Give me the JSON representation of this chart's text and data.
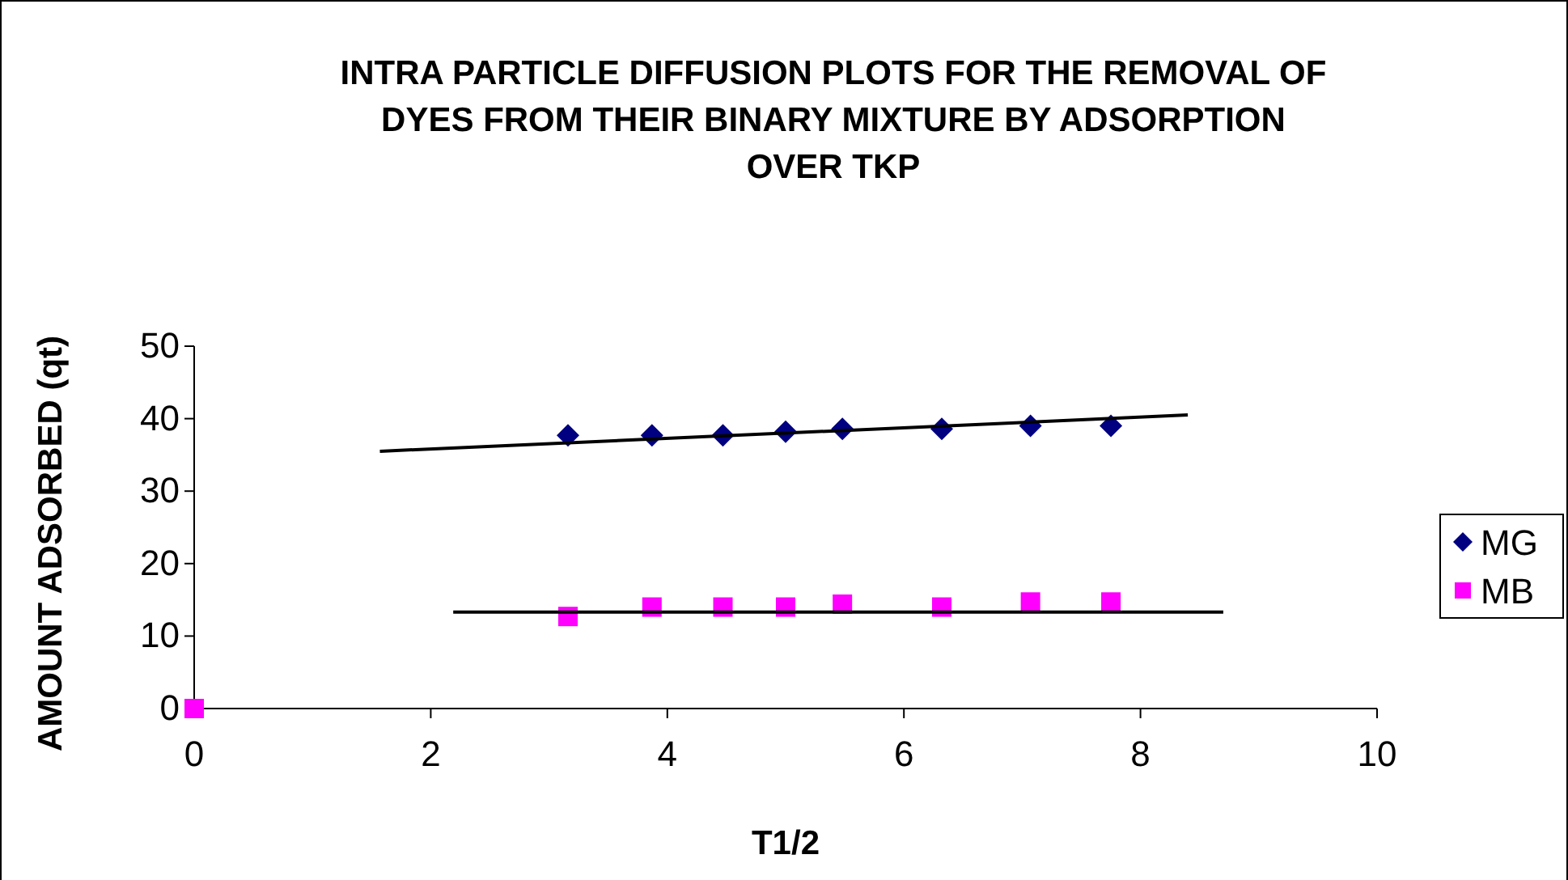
{
  "chart_data": {
    "type": "scatter",
    "title": "INTRA PARTICLE  DIFFUSION  PLOTS  FOR THE  REMOVAL OF DYES FROM THEIR  BINARY MIXTURE BY ADSORPTION OVER TKP",
    "xlabel": "T1/2",
    "ylabel": "AMOUNT  ADSORBED (qt)",
    "xlim": [
      0,
      10
    ],
    "xticks": [
      0,
      2,
      4,
      6,
      8,
      10
    ],
    "ylim": [
      0,
      50
    ],
    "yticks": [
      0,
      10,
      20,
      30,
      40,
      50
    ],
    "grid": false,
    "legend": "right",
    "series": [
      {
        "name": "MG",
        "color": "#000080",
        "marker": "diamond",
        "x": [
          3.16,
          3.87,
          4.47,
          5,
          5.48,
          6.32,
          7.07,
          7.75
        ],
        "values": [
          37.7,
          37.7,
          37.7,
          38.2,
          38.6,
          38.6,
          39.0,
          39.0
        ]
      },
      {
        "name": "MB",
        "color": "#ff00ff",
        "marker": "square",
        "x": [
          0,
          3.16,
          3.87,
          4.47,
          5,
          5.48,
          6.32,
          7.07,
          7.75
        ],
        "values": [
          0,
          12.7,
          14.0,
          14.0,
          14.0,
          14.4,
          14.0,
          14.7,
          14.7
        ]
      },
      {
        "type": "line",
        "color": "#000000",
        "marker": "none",
        "line_style": "solid",
        "x": [
          1.57,
          8.4
        ],
        "values": [
          35.5,
          40.5
        ]
      },
      {
        "type": "line",
        "color": "#000000",
        "marker": "none",
        "line_style": "solid",
        "x": [
          2.19,
          8.7
        ],
        "values": [
          13.3,
          13.3
        ]
      }
    ]
  }
}
